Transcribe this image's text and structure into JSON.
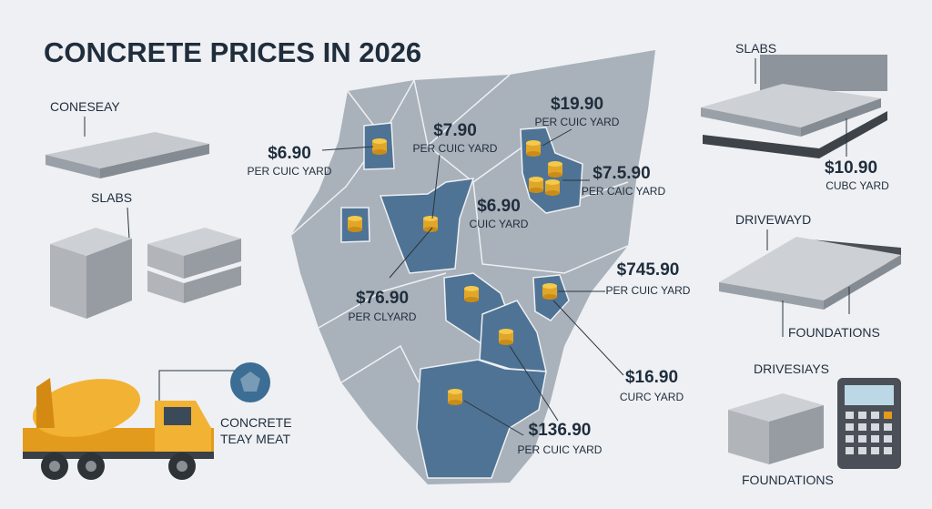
{
  "header": {
    "title": "CONCRETE PRICES IN 2026"
  },
  "left": {
    "slab_label": "CONESEAY",
    "blocks_label": "SLABS",
    "truck_label": [
      "CONCRETE",
      "TEAY MEAT"
    ]
  },
  "map_labels": [
    {
      "price": "$6.90",
      "unit": "PER CUIC YARD"
    },
    {
      "price": "$7.90",
      "unit": "PER CUIC YARD"
    },
    {
      "price": "$19.90",
      "unit": "PER CUIC YARD"
    },
    {
      "price": "$7.5.90",
      "unit": "PER CAIC YARD"
    },
    {
      "price": "$6.90",
      "unit": "CUIC YARD"
    },
    {
      "price": "$745.90",
      "unit": "PER CUIC YARD"
    },
    {
      "price": "$76.90",
      "unit": "PER CLYARD"
    },
    {
      "price": "$16.90",
      "unit": "CURC YARD"
    },
    {
      "price": "$136.90",
      "unit": "PER CUIC YARD"
    }
  ],
  "right": {
    "slabs_label": "SLABS",
    "slab_price": "$10.90",
    "slab_unit": "CUBC YARD",
    "driveway_label": "DRIVEWAYD",
    "foundations_label": "FOUNDATIONS",
    "drives_label": "DRIVESIAYS",
    "foundations_label_2": "FOUNDATIONS"
  }
}
